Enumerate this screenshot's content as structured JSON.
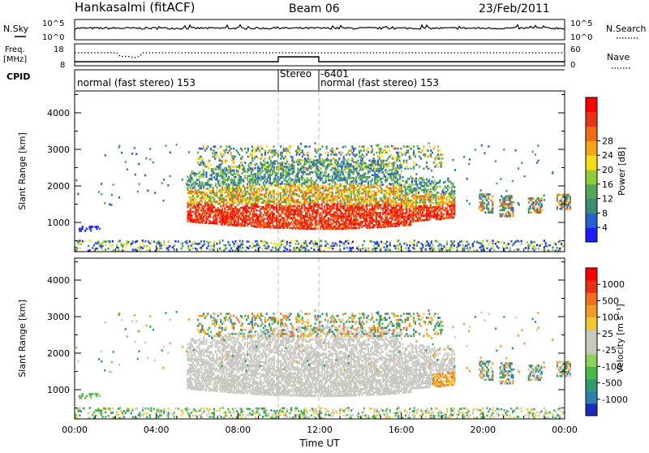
{
  "header": {
    "station": "Hankasalmi (fitACF)",
    "beam": "Beam 06",
    "date": "23/Feb/2011"
  },
  "strip_labels": {
    "nsky": "N.Sky",
    "nsky_top": "10^5",
    "nsky_bottom": "10^0",
    "nsearch": "N.Search",
    "nsearch_top": "10^5",
    "nsearch_bottom": "10^0",
    "freq_line1": "Freq.",
    "freq_line2": "[MHz]",
    "freq_top": "18",
    "freq_bottom": "8",
    "nave": "Nave",
    "nave_top": "60",
    "nave_bottom": "0",
    "cpid": "CPID"
  },
  "cpid_segments": [
    {
      "label": "normal (fast stereo) 153",
      "start": 0,
      "end": 10
    },
    {
      "label": "Stereo",
      "start": 10,
      "end": 12
    },
    {
      "label": "-6401",
      "start": 12,
      "end": 12
    },
    {
      "label": "normal (fast stereo) 153",
      "start": 12,
      "end": 24
    }
  ],
  "chart_data": [
    {
      "type": "heatmap",
      "name": "power",
      "ylabel": "Slant Range [km]",
      "xlabel": "",
      "xlim": [
        0,
        24
      ],
      "ylim": [
        200,
        4600
      ],
      "yticks": [
        "1000",
        "2000",
        "3000",
        "4000"
      ],
      "colorbar": {
        "label": "Power [dB]",
        "ticks": [
          "4",
          "8",
          "12",
          "16",
          "20",
          "24",
          "28"
        ],
        "colors": [
          "#1c1cff",
          "#2a5fcf",
          "#3e8a74",
          "#53a65c",
          "#8fce3a",
          "#f3dc18",
          "#f6a51a",
          "#ef6b14",
          "#e83412",
          "#ff0000"
        ]
      }
    },
    {
      "type": "heatmap",
      "name": "velocity",
      "ylabel": "Slant Range [km]",
      "xlabel": "Time UT",
      "xlim": [
        0,
        24
      ],
      "ylim": [
        200,
        4600
      ],
      "yticks": [
        "1000",
        "2000",
        "3000",
        "4000"
      ],
      "xticks": [
        "00:00",
        "04:00",
        "08:00",
        "12:00",
        "16:00",
        "20:00",
        "00:00"
      ],
      "colorbar": {
        "label": "Velocity [m s⁻¹]",
        "ticks": [
          "1000",
          "500",
          "100",
          "25",
          "-25",
          "-100",
          "-500",
          "-1000"
        ],
        "colors": [
          "#1a2bb5",
          "#2d7fb0",
          "#2f9c6a",
          "#48b848",
          "#8fd25a",
          "#c8c8c0",
          "#c8c8c0",
          "#f0c830",
          "#f09a28",
          "#f07020",
          "#e83012",
          "#ff0000"
        ]
      }
    }
  ]
}
